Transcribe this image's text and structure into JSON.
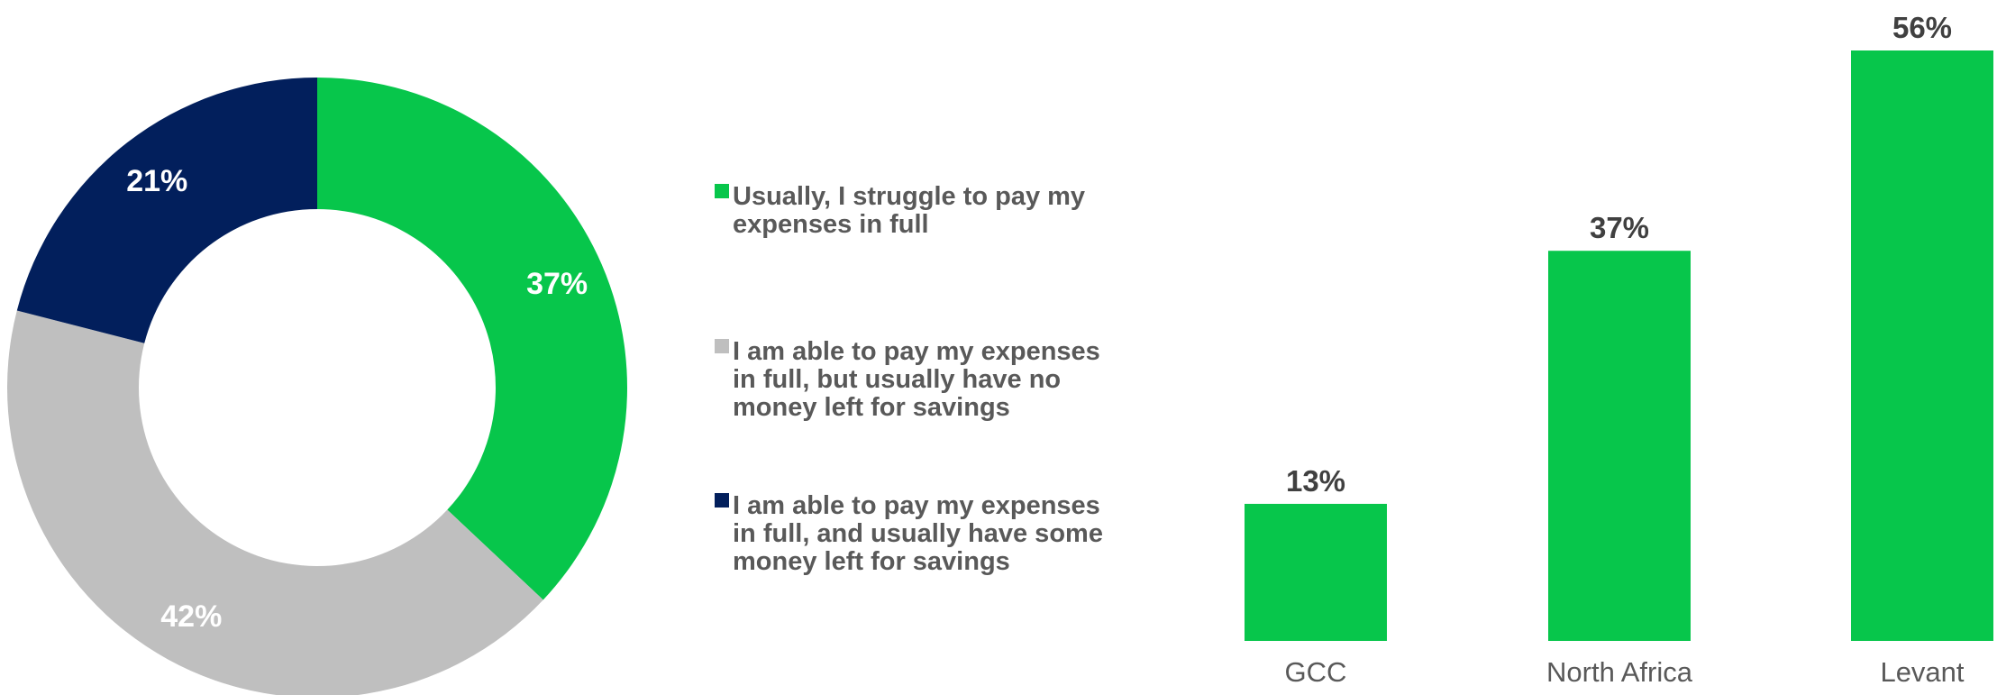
{
  "chart_data": [
    {
      "type": "pie",
      "variant": "donut",
      "start_angle_deg": 0,
      "direction": "clockwise",
      "slices": [
        {
          "label": "Usually, I struggle to pay my expenses in full",
          "value": 37,
          "value_label": "37%",
          "color": "#07C64B"
        },
        {
          "label": "I am able to pay my expenses in full, but usually have no money left for savings",
          "value": 42,
          "value_label": "42%",
          "color": "#BFBFBF"
        },
        {
          "label": "I am able to pay my expenses in full, and usually have some money left for savings",
          "value": 21,
          "value_label": "21%",
          "color": "#021F5C"
        }
      ],
      "legend": {
        "placement": "right",
        "items": [
          {
            "lines": [
              "Usually, I struggle to pay my",
              "expenses in full"
            ],
            "color": "#07C64B"
          },
          {
            "lines": [
              "I am able to pay my expenses",
              "in full, but usually have no",
              "money left for savings"
            ],
            "color": "#BFBFBF"
          },
          {
            "lines": [
              "I am able to pay my expenses",
              "in full, and usually have some",
              "money left for savings"
            ],
            "color": "#021F5C"
          }
        ]
      }
    },
    {
      "type": "bar",
      "categories": [
        "GCC",
        "North Africa",
        "Levant"
      ],
      "values": [
        13,
        37,
        56
      ],
      "value_labels": [
        "13%",
        "37%",
        "56%"
      ],
      "color": "#07C64B",
      "ylim": [
        0,
        56
      ],
      "grid": false,
      "y_axis_visible": false
    }
  ],
  "colors": {
    "green": "#07C64B",
    "gray": "#BFBFBF",
    "navy": "#021F5C",
    "label_dark": "#404040",
    "label_mid": "#595959"
  }
}
